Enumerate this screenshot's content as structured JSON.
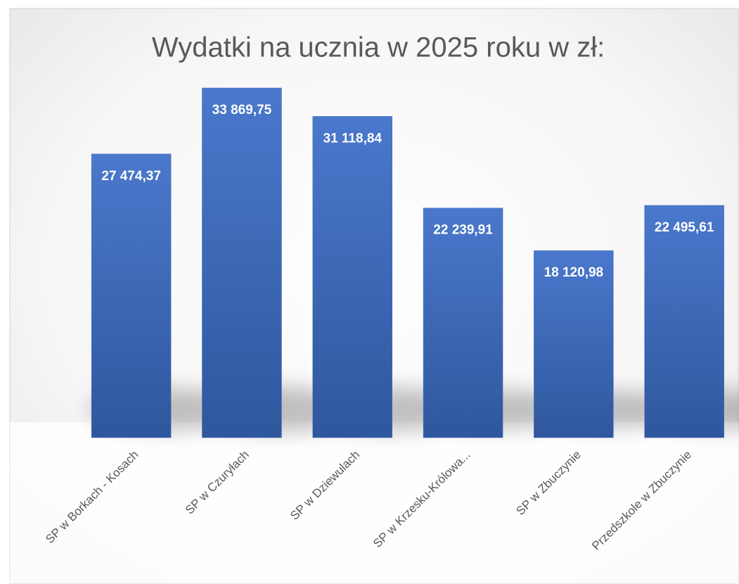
{
  "chart_data": {
    "type": "bar",
    "title": "Wydatki na ucznia w 2025 roku w zł:",
    "categories": [
      "SP w Borkach - Kosach",
      "SP  w Czuryłach",
      "SP  w Dziewulach",
      "SP w Krzesku-Królowa...",
      "SP w Zbuczynie",
      "Przedszkole w Zbuczynie"
    ],
    "values": [
      27474.37,
      33869.75,
      31118.84,
      22239.91,
      18120.98,
      22495.61
    ],
    "value_labels": [
      "27 474,37",
      "33 869,75",
      "31 118,84",
      "22 239,91",
      "18 120,98",
      "22 495,61"
    ],
    "color": "#4472c4"
  }
}
